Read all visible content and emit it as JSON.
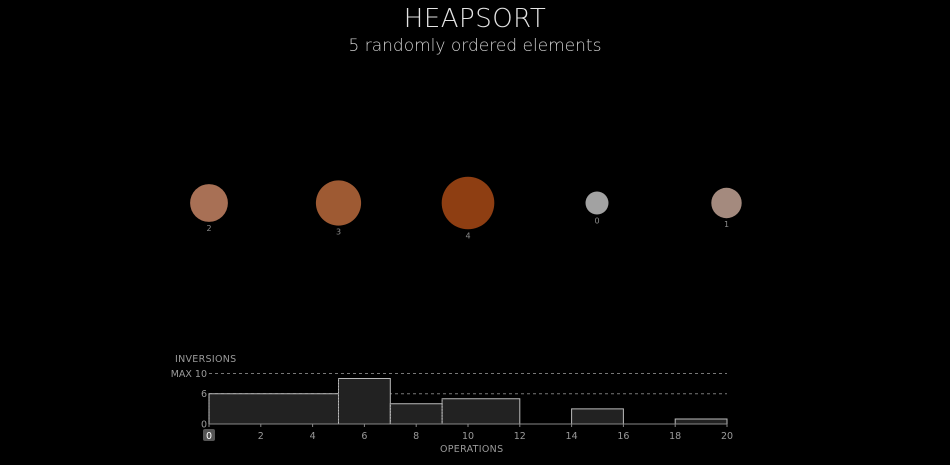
{
  "header": {
    "title": "HEAPSORT",
    "subtitle": "5 randomly ordered elements"
  },
  "elements": [
    {
      "label": "2",
      "value": 2,
      "color": "#a87055"
    },
    {
      "label": "3",
      "value": 3,
      "color": "#9e5a33"
    },
    {
      "label": "4",
      "value": 4,
      "color": "#8e3e12"
    },
    {
      "label": "0",
      "value": 0,
      "color": "#a2a2a2"
    },
    {
      "label": "1",
      "value": 1,
      "color": "#a48a7e"
    }
  ],
  "chart_data": {
    "type": "area",
    "title": "INVERSIONS",
    "xlabel": "OPERATIONS",
    "ylabel": "INVERSIONS",
    "max_label": "MAX 10",
    "ymax": 10,
    "reference_value": 6,
    "y_ticks": [
      "0",
      "6"
    ],
    "xlim": [
      0,
      20
    ],
    "x_ticks": [
      0,
      2,
      4,
      6,
      8,
      10,
      12,
      14,
      16,
      18,
      20
    ],
    "current_operation": 0,
    "steps": [
      {
        "x0": 0,
        "x1": 5,
        "y": 6
      },
      {
        "x0": 5,
        "x1": 7,
        "y": 9
      },
      {
        "x0": 7,
        "x1": 9,
        "y": 4
      },
      {
        "x0": 9,
        "x1": 12,
        "y": 5
      },
      {
        "x0": 12,
        "x1": 14,
        "y": 0
      },
      {
        "x0": 14,
        "x1": 16,
        "y": 3
      },
      {
        "x0": 16,
        "x1": 18,
        "y": 0
      },
      {
        "x0": 18,
        "x1": 20,
        "y": 1
      }
    ],
    "markers": [
      5,
      7,
      9
    ],
    "colors": {
      "line": "#bbbbbb",
      "fill": "#222222",
      "dashed": "#777777",
      "axis": "#888888",
      "tick_text": "#9a9a9a",
      "highlight_bg": "#555555",
      "highlight_text": "#ffffff"
    }
  }
}
